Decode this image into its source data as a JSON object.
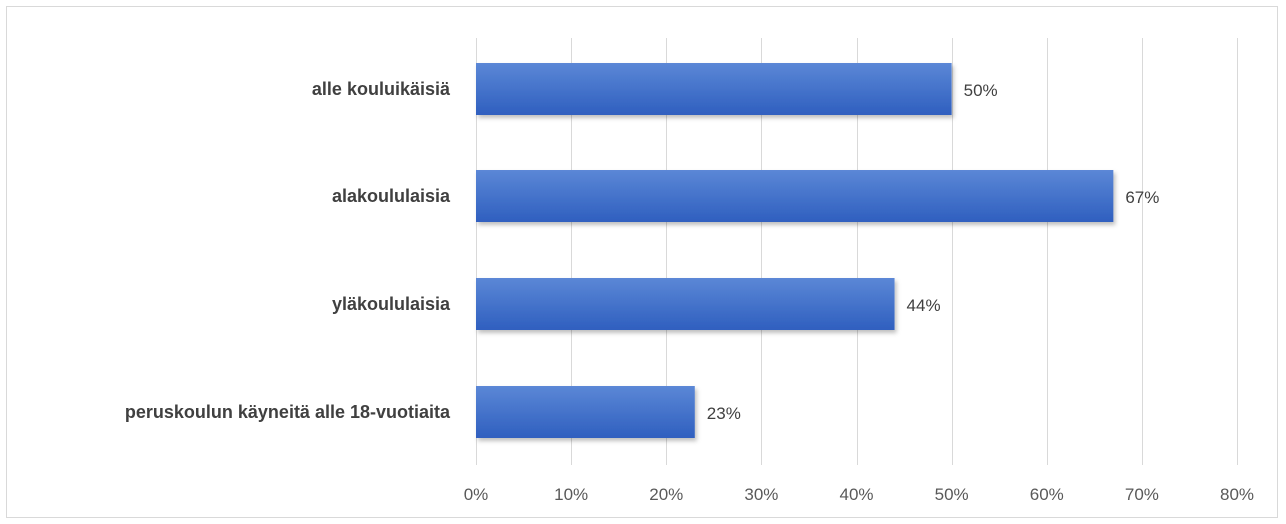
{
  "chart_data": {
    "type": "bar",
    "orientation": "horizontal",
    "title": "",
    "xlabel": "",
    "ylabel": "",
    "categories": [
      "alle kouluikäisiä",
      "alakoululaisia",
      "yläkoululaisia",
      "peruskoulun käyneitä alle 18-vuotiaita"
    ],
    "values": [
      50,
      67,
      44,
      23
    ],
    "data_labels": [
      "50%",
      "67%",
      "44%",
      "23%"
    ],
    "xlim": [
      0,
      80
    ],
    "x_ticks": [
      0,
      10,
      20,
      30,
      40,
      50,
      60,
      70,
      80
    ],
    "x_tick_labels": [
      "0%",
      "10%",
      "20%",
      "30%",
      "40%",
      "50%",
      "60%",
      "70%",
      "80%"
    ],
    "grid": "vertical",
    "legend": "none",
    "colors": {
      "bar_top": "#5b87d6",
      "bar_bottom": "#2f5fbf",
      "gridline": "#d9d9d9",
      "frame": "#d9d9d9"
    }
  }
}
